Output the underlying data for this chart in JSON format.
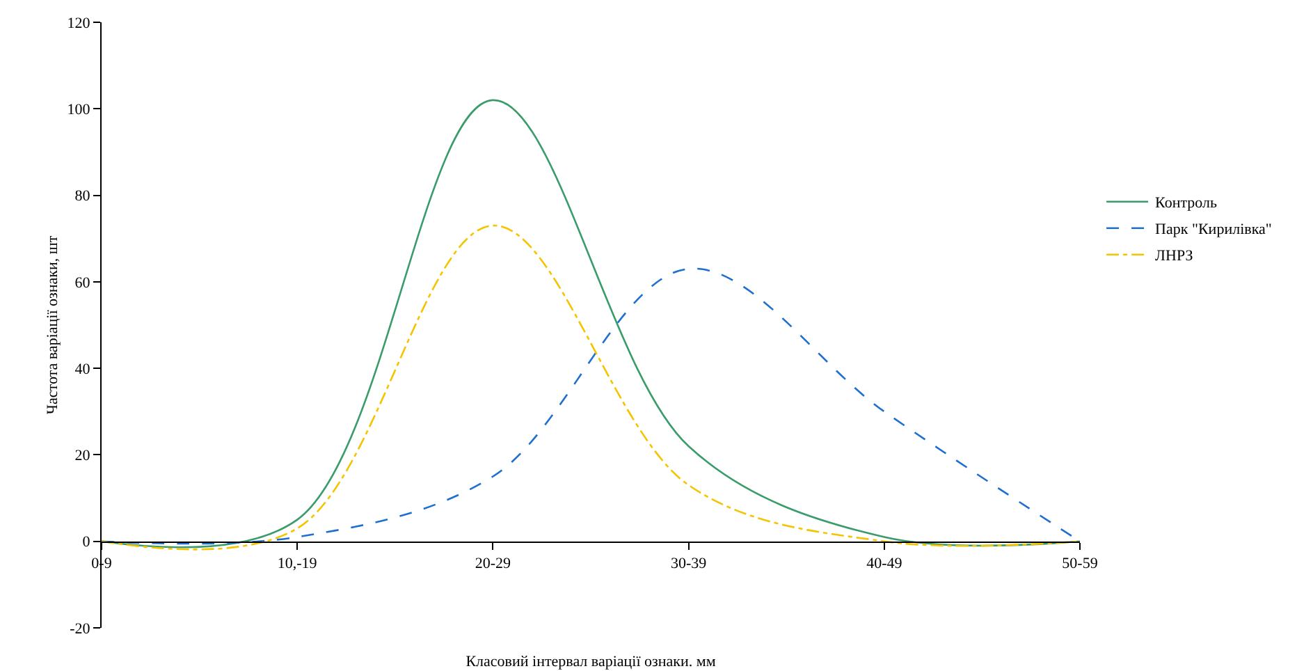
{
  "chart_data": {
    "type": "line",
    "xlabel": "Класовий інтервал варіації ознаки. мм",
    "ylabel": "Частота варіації ознаки, шт",
    "categories": [
      "0-9",
      "10,-19",
      "20-29",
      "30-39",
      "40-49",
      "50-59"
    ],
    "series": [
      {
        "name": "Контроль",
        "color": "#3a9c6a",
        "line_style": "solid",
        "values": [
          0,
          5,
          102,
          22,
          1,
          0
        ]
      },
      {
        "name": "Парк \"Кирилівка\"",
        "color": "#1f6fd1",
        "line_style": "dashed",
        "values": [
          0,
          1,
          15,
          63,
          30,
          0
        ]
      },
      {
        "name": "ЛНРЗ",
        "color": "#f5c400",
        "line_style": "dashdot",
        "values": [
          0,
          3,
          73,
          13,
          0,
          0
        ]
      }
    ],
    "ylim": [
      -20,
      120
    ],
    "yticks": [
      -20,
      0,
      20,
      40,
      60,
      80,
      100,
      120
    ],
    "grid": false,
    "legend": "right",
    "marker": "none"
  }
}
